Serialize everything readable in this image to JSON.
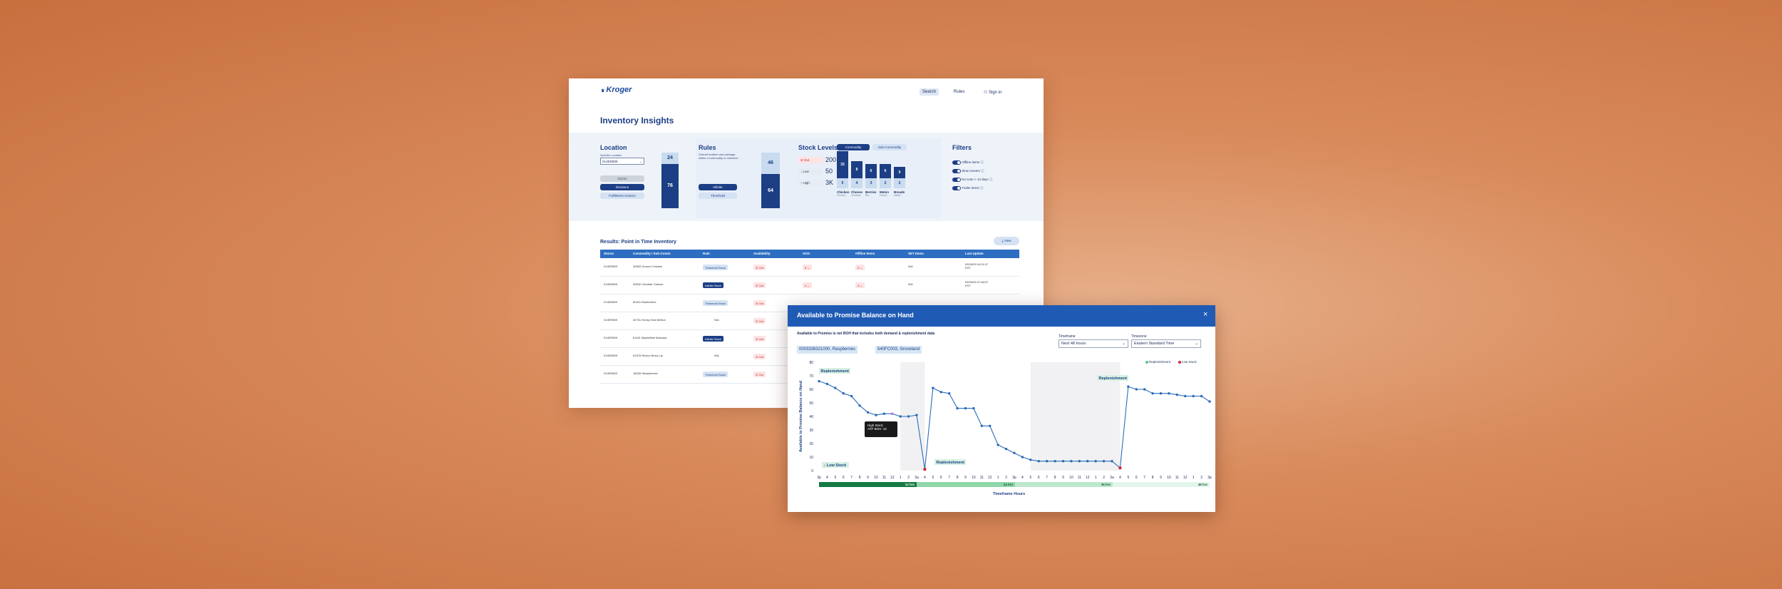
{
  "header": {
    "logo": "Kroger",
    "nav": {
      "search": "Search",
      "rules": "Rules",
      "signin": "Sign in"
    }
  },
  "page": {
    "title": "Inventory Insights"
  },
  "location": {
    "title": "Location",
    "specific_label": "Specific Location",
    "select_value": "014EEB09",
    "options": [
      "Stores",
      "Divisions",
      "Fulfillment Centers"
    ],
    "bar_top": "24",
    "bar_bottom": "76"
  },
  "rules": {
    "title": "Rules",
    "description": "Overall location and package within a commodity or selection",
    "options": [
      "Infinite",
      "Threshold"
    ],
    "bar_top": "46",
    "bar_bottom": "64"
  },
  "stock_levels": {
    "title": "Stock Levels",
    "tabs": [
      "Commodity",
      "Sub-Commodity"
    ],
    "levels": [
      {
        "label": "Out",
        "value": "200"
      },
      {
        "label": "Low",
        "value": "50"
      },
      {
        "label": "High",
        "value": "3K"
      }
    ],
    "columns": [
      {
        "name": "Chicken",
        "sub": "Ground...",
        "top": "33",
        "bottom": "5"
      },
      {
        "name": "Cheese",
        "sub": "Cheddar...",
        "top": "8",
        "bottom": "4"
      },
      {
        "name": "Berries",
        "sub": "Blu...",
        "top": "6",
        "bottom": "3"
      },
      {
        "name": "Melon",
        "sub": "Honey...",
        "top": "6",
        "bottom": "2"
      },
      {
        "name": "Breads",
        "sub": "Italian...",
        "top": "5",
        "bottom": "2"
      }
    ]
  },
  "filters": {
    "title": "Filters",
    "items": [
      "Offline items",
      "Slow movers",
      "No scan > 14 days",
      "Trailer items"
    ]
  },
  "results": {
    "title": "Results: Point in Time Inventory",
    "view_button": "View",
    "columns": [
      "Stores",
      "Commodity / Sub-Comm",
      "Rule",
      "Availability",
      "OOS",
      "Offline Items",
      "SET Items",
      "Last Update"
    ],
    "rows": [
      {
        "store": "014EEB09",
        "item": "30509 Ground Chicken",
        "rule": "Threshold Stock",
        "avail": "Out",
        "oos": "5",
        "offline": "5",
        "set": "N/A",
        "updated": "09/26/25 04:31:07 EST"
      },
      {
        "store": "014EEB09",
        "item": "30532 Cheddar Cheese",
        "rule": "Infinite Stock",
        "avail": "Out",
        "oos": "4",
        "offline": "4",
        "set": "N/A",
        "updated": "09/26/25 07:48:07 EST"
      },
      {
        "store": "014EEB09",
        "item": "60401 Blueberries",
        "rule": "Threshold Stock",
        "avail": "Out",
        "oos": "",
        "offline": "",
        "set": "",
        "updated": ""
      },
      {
        "store": "014EEB09",
        "item": "40731 Honey Dew Mellon",
        "rule": "N/A",
        "avail": "Out",
        "oos": "",
        "offline": "",
        "set": "",
        "updated": ""
      },
      {
        "store": "014EEB09",
        "item": "61181 Maybelline Mascara",
        "rule": "Infinite Stock",
        "avail": "Out",
        "oos": "",
        "offline": "",
        "set": "",
        "updated": ""
      },
      {
        "store": "014EEB09",
        "item": "61576 Revlon Berry Lip",
        "rule": "N/A",
        "avail": "Out",
        "oos": "",
        "offline": "",
        "set": "",
        "updated": ""
      },
      {
        "store": "014EEB09",
        "item": "18205 Strawberries",
        "rule": "Threshold Stock",
        "avail": "Out",
        "oos": "",
        "offline": "",
        "set": "",
        "updated": ""
      }
    ]
  },
  "dialog": {
    "title": "Available to Promise Balance on Hand",
    "subtitle": "Available to Promise is net BOH that includes both demand & replenishment data",
    "close": "×",
    "chips": [
      "0003338321000, Raspberries",
      "540FC003, Groveland"
    ],
    "timeframe_label": "Timeframe",
    "timeframe_value": "Next 48 hours",
    "timezone_label": "Timezone",
    "timezone_value": "Eastern Standard Time",
    "legend": {
      "replenishment": "Replenishment",
      "low_stock": "Low Stock"
    },
    "tooltip": {
      "line1": "High Stock",
      "line2": "ATP BOH: 42"
    },
    "annotations": [
      "Replenishment",
      "Low Stock",
      "Replenishment",
      "Replenishment"
    ],
    "timeline": [
      "12 hrs",
      "24 hrs",
      "36 hrs",
      "48 hrs"
    ],
    "timeframe_hours": "Timeframe Hours",
    "colors": {
      "line": "#2b6cb8",
      "low": "#d6283a",
      "replenish_bg": "#d6f0e2",
      "dark_green": "#167a43"
    }
  },
  "chart_data": {
    "type": "line",
    "ylabel": "Available to Promise Balance on Hand",
    "xlabel": "Timeframe Hours",
    "ylim": [
      0,
      80
    ],
    "yticks": [
      0,
      10,
      20,
      30,
      40,
      50,
      60,
      70,
      80
    ],
    "x": [
      "3p",
      "4",
      "5",
      "6",
      "7",
      "8",
      "9",
      "10",
      "11",
      "12",
      "1",
      "2",
      "3a",
      "4",
      "5",
      "6",
      "7",
      "8",
      "9",
      "10",
      "11",
      "12",
      "1",
      "2",
      "3p",
      "4",
      "5",
      "6",
      "7",
      "8",
      "9",
      "10",
      "11",
      "12",
      "1",
      "2",
      "3a",
      "4",
      "5",
      "6",
      "7",
      "8",
      "9",
      "10",
      "11",
      "12",
      "1",
      "2",
      "3p"
    ],
    "series": [
      {
        "values": [
          66,
          64,
          61,
          57,
          55,
          48,
          43,
          41,
          42,
          42,
          40,
          40,
          41,
          1,
          61,
          58,
          57,
          46,
          46,
          46,
          33,
          33,
          19,
          16,
          13,
          10,
          8,
          7,
          7,
          7,
          7,
          7,
          7,
          7,
          7,
          7,
          7,
          2,
          62,
          60,
          60,
          57,
          57,
          57,
          56,
          55,
          55,
          55,
          51
        ]
      }
    ]
  }
}
